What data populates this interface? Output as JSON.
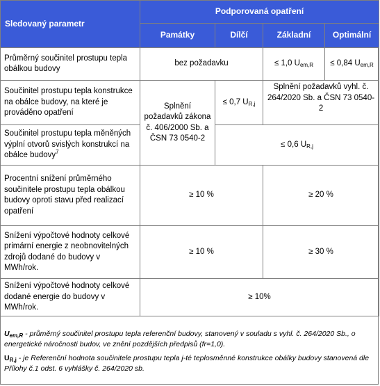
{
  "header": {
    "param": "Sledovaný parametr",
    "group": "Podporovaná opatření",
    "cols": [
      "Památky",
      "Dílčí",
      "Základní",
      "Optimální"
    ]
  },
  "rows": {
    "r1": {
      "label": "Průměrný součinitel prostupu tepla obálkou budovy",
      "span": "bez požadavku",
      "zakladni": "≤ 1,0 U",
      "zakladni_sub": "em,R",
      "optimalni": "≤ 0,84 U",
      "optimalni_sub": "em,R"
    },
    "r2": {
      "label": "Součinitel prostupu tepla konstrukce na obálce budovy, na které je prováděno opatření",
      "pamatky": "Splnění požadavků zákona č. 406/2000 Sb. a ČSN 73 0540-2",
      "dilci": "≤ 0,7 U",
      "dilci_sub": "R,j",
      "span": "Splnění požadavků vyhl. č. 264/2020 Sb. a ČSN 73 0540-2"
    },
    "r3": {
      "label": "Součinitel prostupu tepla měněných výplní otvorů svislých konstrukcí na obálce budovy",
      "label_sup": "7",
      "span": "≤ 0,6 U",
      "span_sub": "R,j"
    },
    "r4": {
      "label": "Procentní snížení průměrného součinitele prostupu tepla obálkou budovy oproti stavu před realizací opatření",
      "left": "≥ 10 %",
      "right": "≥ 20 %"
    },
    "r5": {
      "label": "Snížení výpočtové hodnoty celkové primární energie z neobnovitelných zdrojů dodané do budovy v MWh/rok.",
      "left": "≥ 10 %",
      "right": "≥ 30 %"
    },
    "r6": {
      "label": "Snížení výpočtové hodnoty celkové dodané energie do budovy v MWh/rok.",
      "all": "≥ 10%"
    }
  },
  "notes": {
    "n1_sym": "U",
    "n1_sub": "em,R",
    "n1_text": " - průměrný součinitel prostupu tepla referenční budovy, stanovený v souladu s vyhl. č. 264/2020 Sb., o energetické náročnosti budov, ve znění pozdějších předpisů  (fr=1,0).",
    "n2_sym": "U",
    "n2_sub": "R,j",
    "n2_text": "  - je Referenční hodnota součinitele prostupu tepla j-té teplosměnné konstrukce obálky budovy stanovená dle Přílohy č.1 odst. 6 vyhlášky č. 264/2020 sb."
  }
}
